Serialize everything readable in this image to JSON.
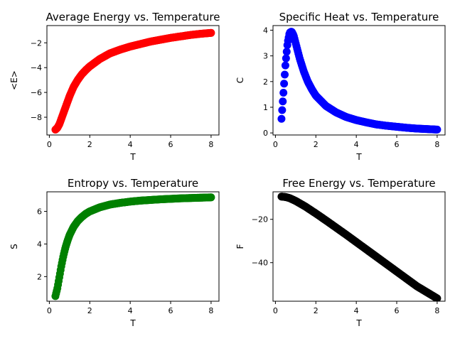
{
  "chart_data": [
    {
      "type": "scatter",
      "title": "Average Energy vs. Temperature",
      "xlabel": "T",
      "ylabel": "<E>",
      "xlim": [
        -0.12,
        8.39
      ],
      "ylim": [
        -9.43,
        -0.61
      ],
      "xticks": [
        0,
        2,
        4,
        6,
        8
      ],
      "xtick_labels": [
        "0",
        "2",
        "4",
        "6",
        "8"
      ],
      "yticks": [
        -8,
        -6,
        -4,
        -2
      ],
      "ytick_labels": [
        "−8",
        "−6",
        "−4",
        "−2"
      ],
      "color": "#ff0000",
      "grid": false,
      "series": [
        {
          "x": [
            0.3,
            0.4,
            0.5,
            0.6,
            0.8,
            1.0,
            1.2,
            1.4,
            1.6,
            1.8,
            2.0,
            2.5,
            3.0,
            3.5,
            4.0,
            4.5,
            5.0,
            5.5,
            6.0,
            6.5,
            7.0,
            7.5,
            8.0
          ],
          "y": [
            -9.0,
            -8.85,
            -8.55,
            -8.1,
            -7.2,
            -6.3,
            -5.55,
            -5.0,
            -4.55,
            -4.2,
            -3.9,
            -3.3,
            -2.85,
            -2.55,
            -2.3,
            -2.1,
            -1.9,
            -1.75,
            -1.6,
            -1.48,
            -1.36,
            -1.27,
            -1.2
          ]
        }
      ]
    },
    {
      "type": "scatter",
      "title": "Specific Heat vs. Temperature",
      "xlabel": "T",
      "ylabel": "C",
      "xlim": [
        -0.12,
        8.39
      ],
      "ylim": [
        -0.08,
        4.18
      ],
      "xticks": [
        0,
        2,
        4,
        6,
        8
      ],
      "xtick_labels": [
        "0",
        "2",
        "4",
        "6",
        "8"
      ],
      "yticks": [
        0,
        1,
        2,
        3,
        4
      ],
      "ytick_labels": [
        "0",
        "1",
        "2",
        "3",
        "4"
      ],
      "color": "#0000ff",
      "grid": false,
      "series": [
        {
          "x": [
            0.3,
            0.4,
            0.5,
            0.6,
            0.7,
            0.8,
            0.9,
            1.0,
            1.2,
            1.4,
            1.6,
            1.8,
            2.0,
            2.5,
            3.0,
            3.5,
            4.0,
            4.5,
            5.0,
            5.5,
            6.0,
            6.5,
            7.0,
            7.5,
            8.0
          ],
          "y": [
            0.55,
            1.6,
            2.7,
            3.5,
            3.9,
            3.95,
            3.8,
            3.5,
            2.9,
            2.4,
            2.0,
            1.7,
            1.45,
            1.05,
            0.8,
            0.62,
            0.5,
            0.41,
            0.33,
            0.28,
            0.24,
            0.2,
            0.17,
            0.15,
            0.13
          ]
        }
      ]
    },
    {
      "type": "scatter",
      "title": "Entropy vs. Temperature",
      "xlabel": "T",
      "ylabel": "S",
      "xlim": [
        -0.12,
        8.39
      ],
      "ylim": [
        0.49,
        7.2
      ],
      "xticks": [
        0,
        2,
        4,
        6,
        8
      ],
      "xtick_labels": [
        "0",
        "2",
        "4",
        "6",
        "8"
      ],
      "yticks": [
        2,
        4,
        6
      ],
      "ytick_labels": [
        "2",
        "4",
        "6"
      ],
      "color": "#008000",
      "grid": false,
      "series": [
        {
          "x": [
            0.3,
            0.4,
            0.5,
            0.6,
            0.7,
            0.8,
            0.9,
            1.0,
            1.2,
            1.4,
            1.6,
            1.8,
            2.0,
            2.5,
            3.0,
            3.5,
            4.0,
            4.5,
            5.0,
            5.5,
            6.0,
            6.5,
            7.0,
            7.5,
            8.0
          ],
          "y": [
            0.8,
            1.3,
            2.0,
            2.7,
            3.3,
            3.8,
            4.2,
            4.55,
            5.05,
            5.4,
            5.65,
            5.85,
            6.0,
            6.25,
            6.42,
            6.52,
            6.6,
            6.66,
            6.7,
            6.74,
            6.77,
            6.8,
            6.82,
            6.84,
            6.86
          ]
        }
      ]
    },
    {
      "type": "scatter",
      "title": "Free Energy vs. Temperature",
      "xlabel": "T",
      "ylabel": "F",
      "xlim": [
        -0.12,
        8.39
      ],
      "ylim": [
        -57.8,
        -7.3
      ],
      "xticks": [
        0,
        2,
        4,
        6,
        8
      ],
      "xtick_labels": [
        "0",
        "2",
        "4",
        "6",
        "8"
      ],
      "yticks": [
        -20,
        -40
      ],
      "ytick_labels": [
        "−20",
        "−40"
      ],
      "color": "#000000",
      "grid": false,
      "series": [
        {
          "x": [
            0.3,
            0.5,
            0.7,
            1.0,
            1.5,
            2.0,
            2.5,
            3.0,
            3.5,
            4.0,
            4.5,
            5.0,
            5.5,
            6.0,
            6.5,
            7.0,
            7.5,
            8.0
          ],
          "y": [
            -9.5,
            -9.7,
            -10.2,
            -11.5,
            -14.2,
            -17.3,
            -20.5,
            -23.8,
            -27.1,
            -30.5,
            -33.9,
            -37.3,
            -40.7,
            -44.1,
            -47.5,
            -50.9,
            -53.7,
            -56.5
          ]
        }
      ]
    }
  ]
}
